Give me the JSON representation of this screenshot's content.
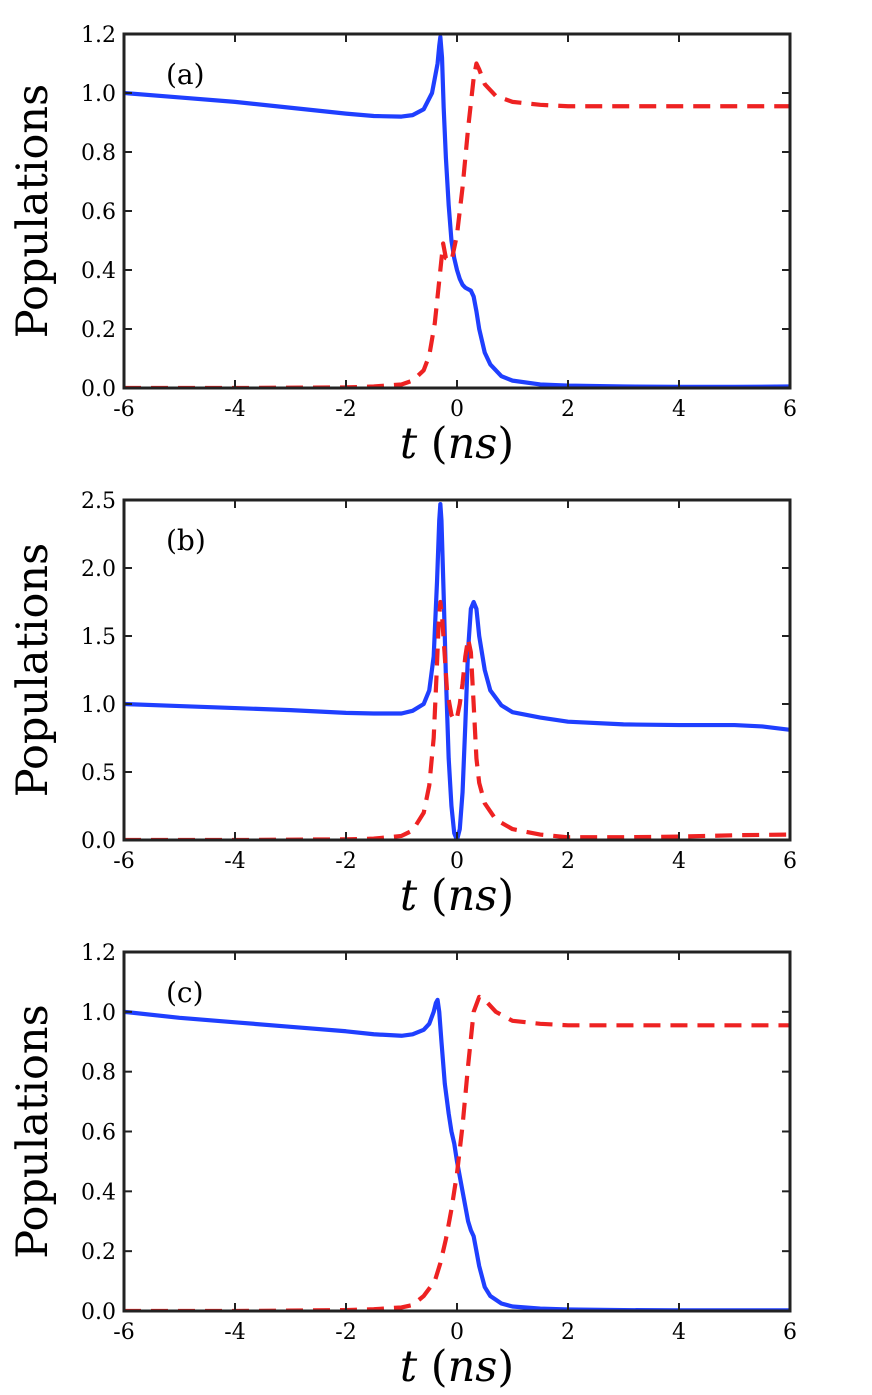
{
  "chart_data": [
    {
      "type": "line",
      "panel_label": "(a)",
      "xlabel": "t (ns)",
      "xlabel_var": "t",
      "xlabel_unit": "ns",
      "ylabel": "Populations",
      "xlim": [
        -6,
        6
      ],
      "ylim": [
        0,
        1.2
      ],
      "xticks": [
        -6,
        -4,
        -2,
        0,
        2,
        4,
        6
      ],
      "yticks": [
        0,
        0.2,
        0.4,
        0.6,
        0.8,
        1.0,
        1.2
      ],
      "ytick_labels": [
        "0.0",
        "0.2",
        "0.4",
        "0.6",
        "0.8",
        "1.0",
        "1.2"
      ],
      "grid": false,
      "series": [
        {
          "name": "solid",
          "style": "solid",
          "color": "#1f3fff",
          "x": [
            -6,
            -5,
            -4,
            -3,
            -2,
            -1.5,
            -1,
            -0.8,
            -0.6,
            -0.45,
            -0.35,
            -0.32,
            -0.3,
            -0.27,
            -0.24,
            -0.2,
            -0.15,
            -0.1,
            -0.05,
            0,
            0.05,
            0.1,
            0.15,
            0.2,
            0.25,
            0.3,
            0.35,
            0.4,
            0.5,
            0.6,
            0.8,
            1,
            1.5,
            2,
            3,
            4,
            5,
            6
          ],
          "y": [
            1.0,
            0.985,
            0.97,
            0.95,
            0.93,
            0.922,
            0.92,
            0.925,
            0.945,
            1.0,
            1.1,
            1.16,
            1.19,
            1.12,
            0.95,
            0.78,
            0.62,
            0.5,
            0.44,
            0.4,
            0.37,
            0.35,
            0.34,
            0.335,
            0.33,
            0.31,
            0.26,
            0.2,
            0.12,
            0.08,
            0.04,
            0.025,
            0.012,
            0.008,
            0.005,
            0.004,
            0.004,
            0.005
          ]
        },
        {
          "name": "dashed",
          "style": "dashed",
          "color": "#ee2222",
          "x": [
            -6,
            -4,
            -2,
            -1.5,
            -1,
            -0.8,
            -0.6,
            -0.5,
            -0.4,
            -0.3,
            -0.25,
            -0.2,
            -0.1,
            0,
            0.1,
            0.2,
            0.3,
            0.35,
            0.4,
            0.5,
            0.7,
            1,
            1.5,
            2,
            3,
            4,
            5,
            6
          ],
          "y": [
            0.0,
            0.0,
            0.002,
            0.005,
            0.012,
            0.025,
            0.06,
            0.11,
            0.22,
            0.4,
            0.49,
            0.44,
            0.43,
            0.52,
            0.68,
            0.88,
            1.05,
            1.1,
            1.08,
            1.03,
            0.99,
            0.97,
            0.96,
            0.955,
            0.955,
            0.955,
            0.955,
            0.955
          ]
        }
      ]
    },
    {
      "type": "line",
      "panel_label": "(b)",
      "xlabel": "t (ns)",
      "xlabel_var": "t",
      "xlabel_unit": "ns",
      "ylabel": "Populations",
      "xlim": [
        -6,
        6
      ],
      "ylim": [
        0,
        2.5
      ],
      "xticks": [
        -6,
        -4,
        -2,
        0,
        2,
        4,
        6
      ],
      "yticks": [
        0,
        0.5,
        1.0,
        1.5,
        2.0,
        2.5
      ],
      "ytick_labels": [
        "0.0",
        "0.5",
        "1.0",
        "1.5",
        "2.0",
        "2.5"
      ],
      "grid": false,
      "series": [
        {
          "name": "solid",
          "style": "solid",
          "color": "#1f3fff",
          "x": [
            -6,
            -5,
            -4,
            -3,
            -2,
            -1.5,
            -1,
            -0.8,
            -0.6,
            -0.5,
            -0.42,
            -0.36,
            -0.32,
            -0.3,
            -0.28,
            -0.24,
            -0.2,
            -0.15,
            -0.1,
            -0.05,
            0,
            0.05,
            0.1,
            0.15,
            0.2,
            0.25,
            0.3,
            0.35,
            0.4,
            0.5,
            0.6,
            0.8,
            1,
            1.5,
            2,
            3,
            4,
            5,
            5.5,
            6
          ],
          "y": [
            1.0,
            0.985,
            0.97,
            0.955,
            0.935,
            0.93,
            0.93,
            0.95,
            1.0,
            1.1,
            1.35,
            1.9,
            2.35,
            2.47,
            2.35,
            1.8,
            1.2,
            0.6,
            0.25,
            0.05,
            0.0,
            0.08,
            0.35,
            0.85,
            1.4,
            1.7,
            1.75,
            1.7,
            1.5,
            1.25,
            1.1,
            0.99,
            0.94,
            0.9,
            0.87,
            0.85,
            0.845,
            0.845,
            0.835,
            0.81
          ]
        },
        {
          "name": "dashed",
          "style": "dashed",
          "color": "#ee2222",
          "x": [
            -6,
            -4,
            -2,
            -1.5,
            -1,
            -0.8,
            -0.6,
            -0.5,
            -0.42,
            -0.37,
            -0.33,
            -0.3,
            -0.27,
            -0.22,
            -0.18,
            -0.1,
            -0.05,
            0,
            0.05,
            0.1,
            0.15,
            0.2,
            0.25,
            0.3,
            0.35,
            0.4,
            0.5,
            0.7,
            1,
            1.5,
            2,
            3,
            4,
            5,
            6
          ],
          "y": [
            0.0,
            0.0,
            0.005,
            0.01,
            0.03,
            0.07,
            0.2,
            0.4,
            0.75,
            1.2,
            1.6,
            1.75,
            1.65,
            1.35,
            1.1,
            0.92,
            0.88,
            0.9,
            1.0,
            1.15,
            1.35,
            1.48,
            1.38,
            1.0,
            0.6,
            0.42,
            0.27,
            0.15,
            0.08,
            0.04,
            0.02,
            0.02,
            0.025,
            0.035,
            0.04
          ]
        }
      ]
    },
    {
      "type": "line",
      "panel_label": "(c)",
      "xlabel": "t (ns)",
      "xlabel_var": "t",
      "xlabel_unit": "ns",
      "ylabel": "Populations",
      "xlim": [
        -6,
        6
      ],
      "ylim": [
        0,
        1.2
      ],
      "xticks": [
        -6,
        -4,
        -2,
        0,
        2,
        4,
        6
      ],
      "yticks": [
        0,
        0.2,
        0.4,
        0.6,
        0.8,
        1.0,
        1.2
      ],
      "ytick_labels": [
        "0.0",
        "0.2",
        "0.4",
        "0.6",
        "0.8",
        "1.0",
        "1.2"
      ],
      "grid": false,
      "series": [
        {
          "name": "solid",
          "style": "solid",
          "color": "#1f3fff",
          "x": [
            -6,
            -5,
            -4,
            -3,
            -2,
            -1.5,
            -1,
            -0.8,
            -0.6,
            -0.5,
            -0.42,
            -0.38,
            -0.35,
            -0.32,
            -0.28,
            -0.22,
            -0.15,
            -0.1,
            -0.05,
            0,
            0.1,
            0.2,
            0.25,
            0.3,
            0.35,
            0.4,
            0.5,
            0.6,
            0.8,
            1,
            1.5,
            2,
            3,
            4,
            5,
            6
          ],
          "y": [
            1.0,
            0.98,
            0.965,
            0.95,
            0.935,
            0.925,
            0.92,
            0.925,
            0.94,
            0.96,
            1.0,
            1.03,
            1.04,
            1.0,
            0.9,
            0.76,
            0.66,
            0.6,
            0.56,
            0.5,
            0.4,
            0.3,
            0.27,
            0.25,
            0.2,
            0.15,
            0.08,
            0.05,
            0.025,
            0.015,
            0.008,
            0.005,
            0.003,
            0.002,
            0.002,
            0.002
          ]
        },
        {
          "name": "dashed",
          "style": "dashed",
          "color": "#ee2222",
          "x": [
            -6,
            -4,
            -2,
            -1.5,
            -1,
            -0.8,
            -0.6,
            -0.4,
            -0.3,
            -0.2,
            -0.1,
            0,
            0.1,
            0.2,
            0.3,
            0.4,
            0.5,
            0.7,
            1,
            1.5,
            2,
            3,
            4,
            5,
            6
          ],
          "y": [
            0.0,
            0.0,
            0.003,
            0.006,
            0.012,
            0.02,
            0.05,
            0.1,
            0.16,
            0.24,
            0.34,
            0.46,
            0.62,
            0.82,
            1.0,
            1.05,
            1.04,
            1.0,
            0.97,
            0.96,
            0.955,
            0.955,
            0.955,
            0.955,
            0.955
          ]
        }
      ]
    }
  ]
}
